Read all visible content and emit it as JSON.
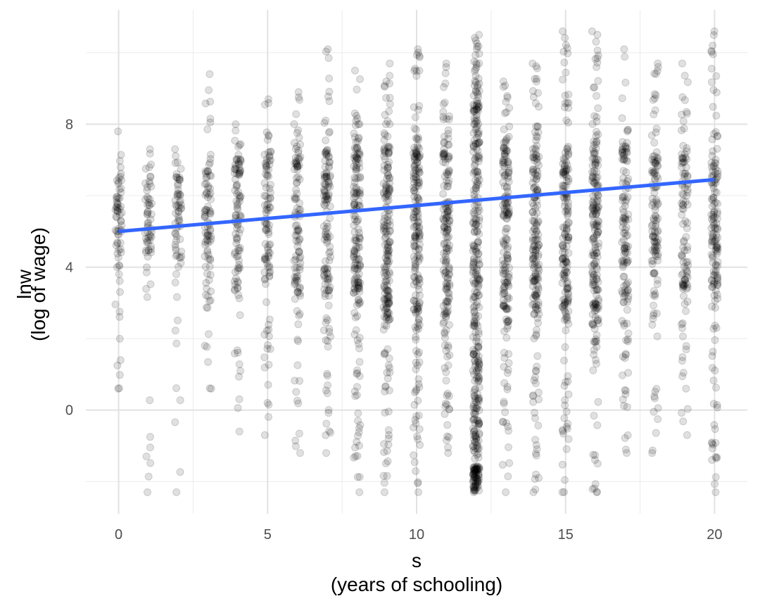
{
  "chart_data": {
    "type": "scatter",
    "title": "",
    "xlabel": [
      "s",
      "(years of schooling)"
    ],
    "ylabel": [
      "lnw",
      "(log of wage)"
    ],
    "xlim": [
      -1.1,
      21.1
    ],
    "ylim": [
      -2.9,
      11.2
    ],
    "x_ticks": [
      0,
      5,
      10,
      15,
      20
    ],
    "x_tick_labels": [
      "0",
      "5",
      "10",
      "15",
      "20"
    ],
    "y_ticks": [
      0,
      4,
      8
    ],
    "y_tick_labels": [
      "0",
      "4",
      "8"
    ],
    "grid": true,
    "legend": "none",
    "point_color": "#000000",
    "point_opacity": 0.12,
    "fit_line": {
      "color": "#3366ff",
      "x": [
        0,
        20
      ],
      "y": [
        5.0,
        6.45
      ]
    },
    "groups": [
      {
        "s": 0,
        "core": [
          4.0,
          6.4
        ],
        "min": 0.6,
        "max": 7.8,
        "n": 30
      },
      {
        "s": 1,
        "core": [
          4.2,
          6.4
        ],
        "min": -2.3,
        "max": 7.3,
        "n": 28
      },
      {
        "s": 2,
        "core": [
          4.2,
          6.5
        ],
        "min": -2.3,
        "max": 7.3,
        "n": 30
      },
      {
        "s": 3,
        "core": [
          3.8,
          6.8
        ],
        "min": 0.6,
        "max": 9.4,
        "n": 40
      },
      {
        "s": 4,
        "core": [
          3.6,
          7.0
        ],
        "min": -0.6,
        "max": 8.0,
        "n": 45
      },
      {
        "s": 5,
        "core": [
          3.6,
          7.1
        ],
        "min": -0.7,
        "max": 8.7,
        "n": 45
      },
      {
        "s": 6,
        "core": [
          3.3,
          7.2
        ],
        "min": -1.2,
        "max": 8.9,
        "n": 50
      },
      {
        "s": 7,
        "core": [
          3.2,
          7.2
        ],
        "min": -1.2,
        "max": 10.1,
        "n": 60
      },
      {
        "s": 8,
        "core": [
          2.8,
          7.3
        ],
        "min": -2.3,
        "max": 9.5,
        "n": 80
      },
      {
        "s": 9,
        "core": [
          2.6,
          7.3
        ],
        "min": -2.3,
        "max": 9.7,
        "n": 90
      },
      {
        "s": 10,
        "core": [
          2.4,
          7.3
        ],
        "min": -2.3,
        "max": 10.1,
        "n": 90
      },
      {
        "s": 11,
        "core": [
          2.6,
          7.3
        ],
        "min": -1.2,
        "max": 9.7,
        "n": 80
      },
      {
        "s": 12,
        "core": [
          -1.6,
          8.4
        ],
        "min": -2.3,
        "max": 10.5,
        "n": 180
      },
      {
        "s": 13,
        "core": [
          2.8,
          7.3
        ],
        "min": -2.3,
        "max": 9.2,
        "n": 80
      },
      {
        "s": 14,
        "core": [
          2.8,
          7.3
        ],
        "min": -2.3,
        "max": 9.7,
        "n": 85
      },
      {
        "s": 15,
        "core": [
          2.8,
          7.3
        ],
        "min": -2.3,
        "max": 10.6,
        "n": 80
      },
      {
        "s": 16,
        "core": [
          2.8,
          7.5
        ],
        "min": -2.3,
        "max": 10.6,
        "n": 90
      },
      {
        "s": 17,
        "core": [
          3.0,
          7.3
        ],
        "min": -1.2,
        "max": 10.1,
        "n": 60
      },
      {
        "s": 18,
        "core": [
          3.8,
          7.3
        ],
        "min": -1.2,
        "max": 9.7,
        "n": 55
      },
      {
        "s": 19,
        "core": [
          3.4,
          7.2
        ],
        "min": -0.7,
        "max": 9.7,
        "n": 50
      },
      {
        "s": 20,
        "core": [
          3.0,
          7.3
        ],
        "min": -2.3,
        "max": 10.6,
        "n": 70
      }
    ]
  }
}
